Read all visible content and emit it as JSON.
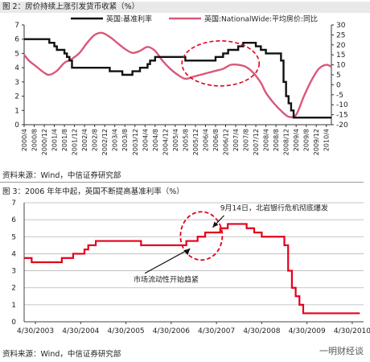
{
  "fig2": {
    "caption": "图 2：房价持续上涨引发货币收紧（%）"
  },
  "fig3": {
    "caption": "图 3：2006 年年中起，英国不断提高基准利率（%）"
  },
  "source_text": "资料来源：Wind，中信证券研究部",
  "watermark": "一明财经谈",
  "chart_data": [
    {
      "type": "line",
      "title": "图 2：房价持续上涨引发货币收紧（%）",
      "x_ticks": [
        "2000/4",
        "2000/8",
        "2000/12",
        "2001/4",
        "2001/8",
        "2001/12",
        "2002/4",
        "2002/8",
        "2002/12",
        "2003/4",
        "2003/8",
        "2003/12",
        "2004/4",
        "2004/8",
        "2004/12",
        "2005/4",
        "2005/8",
        "2005/12",
        "2006/4",
        "2006/8",
        "2006/12",
        "2007/4",
        "2007/8",
        "2007/12",
        "2008/4",
        "2008/8",
        "2008/12",
        "2009/4",
        "2009/8",
        "2009/12",
        "2010/4"
      ],
      "left_ylim": [
        0,
        7
      ],
      "left_yticks": [
        0,
        1,
        2,
        3,
        4,
        5,
        6,
        7
      ],
      "right_ylim": [
        -20,
        30
      ],
      "right_yticks": [
        -20,
        -15,
        -10,
        -5,
        0,
        5,
        10,
        15,
        20,
        25,
        30
      ],
      "grid": false,
      "legend_position": "top",
      "series": [
        {
          "name": "英国:基准利率",
          "axis": "left",
          "color": "#111111",
          "points": [
            [
              "2000-04",
              6.0
            ],
            [
              "2001-01",
              6.0
            ],
            [
              "2001-02",
              5.75
            ],
            [
              "2001-04",
              5.5
            ],
            [
              "2001-05",
              5.25
            ],
            [
              "2001-08",
              5.0
            ],
            [
              "2001-09",
              4.75
            ],
            [
              "2001-10",
              4.5
            ],
            [
              "2001-11",
              4.0
            ],
            [
              "2003-02",
              3.75
            ],
            [
              "2003-07",
              3.5
            ],
            [
              "2003-11",
              3.75
            ],
            [
              "2004-02",
              4.0
            ],
            [
              "2004-05",
              4.25
            ],
            [
              "2004-06",
              4.5
            ],
            [
              "2004-08",
              4.75
            ],
            [
              "2005-08",
              4.5
            ],
            [
              "2006-08",
              4.75
            ],
            [
              "2006-11",
              5.0
            ],
            [
              "2007-01",
              5.25
            ],
            [
              "2007-05",
              5.5
            ],
            [
              "2007-07",
              5.75
            ],
            [
              "2007-12",
              5.5
            ],
            [
              "2008-02",
              5.25
            ],
            [
              "2008-04",
              5.0
            ],
            [
              "2008-10",
              4.5
            ],
            [
              "2008-11",
              3.0
            ],
            [
              "2008-12",
              2.0
            ],
            [
              "2009-01",
              1.5
            ],
            [
              "2009-02",
              1.0
            ],
            [
              "2009-03",
              0.5
            ],
            [
              "2010-06",
              0.5
            ]
          ]
        },
        {
          "name": "英国:NationalWide:平均房价:同比",
          "axis": "right",
          "color": "#d9587a",
          "points": [
            [
              "2000-04",
              15
            ],
            [
              "2000-06",
              12
            ],
            [
              "2000-09",
              9
            ],
            [
              "2000-12",
              6
            ],
            [
              "2001-02",
              5
            ],
            [
              "2001-05",
              7
            ],
            [
              "2001-08",
              11
            ],
            [
              "2001-11",
              13
            ],
            [
              "2002-02",
              16
            ],
            [
              "2002-05",
              21
            ],
            [
              "2002-08",
              25
            ],
            [
              "2002-11",
              26
            ],
            [
              "2003-02",
              24
            ],
            [
              "2003-05",
              21
            ],
            [
              "2003-08",
              18
            ],
            [
              "2003-11",
              16
            ],
            [
              "2004-02",
              17
            ],
            [
              "2004-05",
              19
            ],
            [
              "2004-08",
              17
            ],
            [
              "2004-11",
              12
            ],
            [
              "2005-02",
              8
            ],
            [
              "2005-05",
              5
            ],
            [
              "2005-08",
              3
            ],
            [
              "2005-11",
              4
            ],
            [
              "2006-02",
              5
            ],
            [
              "2006-05",
              6
            ],
            [
              "2006-08",
              7
            ],
            [
              "2006-11",
              8
            ],
            [
              "2007-02",
              10
            ],
            [
              "2007-05",
              10
            ],
            [
              "2007-08",
              9
            ],
            [
              "2007-11",
              6
            ],
            [
              "2008-02",
              1
            ],
            [
              "2008-04",
              -4
            ],
            [
              "2008-07",
              -9
            ],
            [
              "2008-10",
              -13
            ],
            [
              "2009-01",
              -16
            ],
            [
              "2009-04",
              -15
            ],
            [
              "2009-07",
              -6
            ],
            [
              "2009-10",
              2
            ],
            [
              "2010-01",
              8
            ],
            [
              "2010-04",
              10
            ],
            [
              "2010-06",
              9
            ]
          ]
        }
      ],
      "annotations": [
        "dashed ellipse around 2005/4–2007/12 rise"
      ]
    },
    {
      "type": "line",
      "title": "图 3：2006 年年中起，英国不断提高基准利率（%）",
      "x_ticks": [
        "4/30/2003",
        "4/30/2004",
        "4/30/2005",
        "4/30/2006",
        "4/30/2007",
        "4/30/2008",
        "4/30/2009",
        "4/30/2010"
      ],
      "ylim": [
        0,
        7
      ],
      "yticks": [
        0,
        1,
        2,
        3,
        4,
        5,
        6,
        7
      ],
      "grid": true,
      "series": [
        {
          "color": "#e3001b",
          "points": [
            [
              "2003-01",
              3.75
            ],
            [
              "2003-03",
              3.5
            ],
            [
              "2003-08",
              3.5
            ],
            [
              "2003-11",
              3.75
            ],
            [
              "2004-02",
              4.0
            ],
            [
              "2004-05",
              4.25
            ],
            [
              "2004-06",
              4.5
            ],
            [
              "2004-08",
              4.75
            ],
            [
              "2005-08",
              4.5
            ],
            [
              "2006-08",
              4.75
            ],
            [
              "2006-11",
              5.0
            ],
            [
              "2007-01",
              5.25
            ],
            [
              "2007-05",
              5.5
            ],
            [
              "2007-07",
              5.75
            ],
            [
              "2007-12",
              5.5
            ],
            [
              "2008-02",
              5.25
            ],
            [
              "2008-04",
              5.0
            ],
            [
              "2008-10",
              4.5
            ],
            [
              "2008-11",
              3.0
            ],
            [
              "2008-12",
              2.0
            ],
            [
              "2009-01",
              1.5
            ],
            [
              "2009-02",
              1.0
            ],
            [
              "2009-03",
              0.5
            ],
            [
              "2010-06",
              0.5
            ]
          ]
        }
      ],
      "annotations": [
        {
          "text": "9月14日，北岩银行危机彻底爆发"
        },
        {
          "text": "市场流动性开始趋紧"
        }
      ]
    }
  ]
}
